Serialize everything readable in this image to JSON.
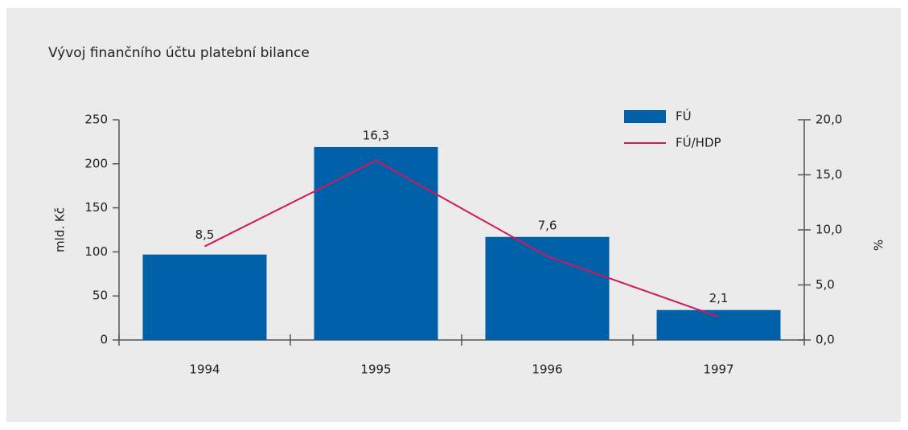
{
  "chart_data": {
    "type": "bar_line",
    "title": "Vývoj finančního účtu platební bilance",
    "ylabel": "mld. Kč",
    "y2label": "%",
    "categories": [
      "1994",
      "1995",
      "1996",
      "1997"
    ],
    "series": [
      {
        "name": "FÚ",
        "type": "bar",
        "color": "#0061a8",
        "values": [
          97,
          219,
          117,
          34
        ]
      },
      {
        "name": "FÚ/HDP",
        "type": "line",
        "axis": "y2",
        "color": "#d0175f",
        "values": [
          8.5,
          16.3,
          7.6,
          2.1
        ],
        "value_labels": [
          "8,5",
          "16,3",
          "7,6",
          "2,1"
        ]
      }
    ],
    "ylim": [
      0,
      250
    ],
    "yticks": [
      0,
      50,
      100,
      150,
      200,
      250
    ],
    "y2lim": [
      0,
      20
    ],
    "y2ticks": [
      {
        "value": 0,
        "label": "0,0"
      },
      {
        "value": 5,
        "label": "5,0"
      },
      {
        "value": 10,
        "label": "10,0"
      },
      {
        "value": 15,
        "label": "15,0"
      },
      {
        "value": 20,
        "label": "20,0"
      }
    ],
    "legend": "top-right"
  }
}
